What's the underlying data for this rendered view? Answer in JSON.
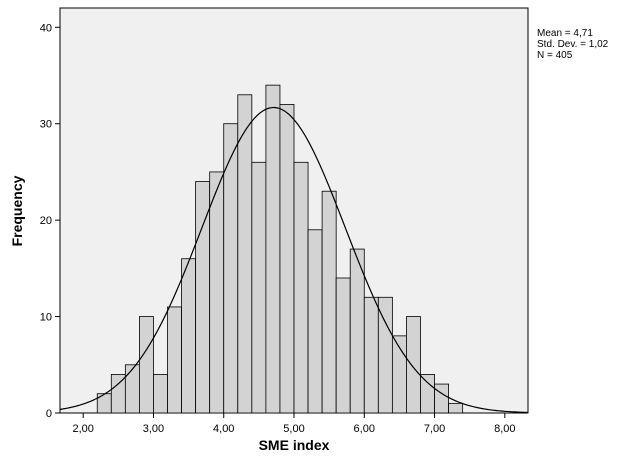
{
  "chart_data": {
    "type": "bar",
    "subtype": "histogram",
    "title": "",
    "xlabel": "SME index",
    "ylabel": "Frequency",
    "xlim": [
      1.67,
      8.33
    ],
    "ylim": [
      0,
      42
    ],
    "x_ticks": [
      2,
      3,
      4,
      5,
      6,
      7,
      8
    ],
    "x_tick_labels": [
      "2,00",
      "3,00",
      "4,00",
      "5,00",
      "6,00",
      "7,00",
      "8,00"
    ],
    "y_ticks": [
      0,
      10,
      20,
      30,
      40
    ],
    "y_tick_labels": [
      "0",
      "10",
      "20",
      "30",
      "40"
    ],
    "bin_width": 0.2,
    "bins_start": [
      2.2,
      2.4,
      2.6,
      2.8,
      3.0,
      3.2,
      3.4,
      3.6,
      3.8,
      4.0,
      4.2,
      4.4,
      4.6,
      4.8,
      5.0,
      5.2,
      5.4,
      5.6,
      5.8,
      6.0,
      6.2,
      6.4,
      6.6,
      6.8,
      7.0,
      7.2
    ],
    "values": [
      2,
      4,
      5,
      10,
      4,
      11,
      16,
      24,
      25,
      30,
      33,
      26,
      34,
      32,
      26,
      19,
      23,
      14,
      17,
      12,
      12,
      8,
      10,
      4,
      3,
      1
    ],
    "normal_curve": {
      "mean": 4.71,
      "sd": 1.02,
      "n": 405
    },
    "stats_labels": [
      "Mean = 4,71",
      "Std. Dev. = 1,02",
      "N = 405"
    ],
    "grid": false,
    "legend": "none",
    "colors": {
      "bar_fill": "#d3d3d3",
      "bar_stroke": "#000000",
      "plot_bg": "#f0f0f0",
      "curve": "#000000"
    }
  }
}
